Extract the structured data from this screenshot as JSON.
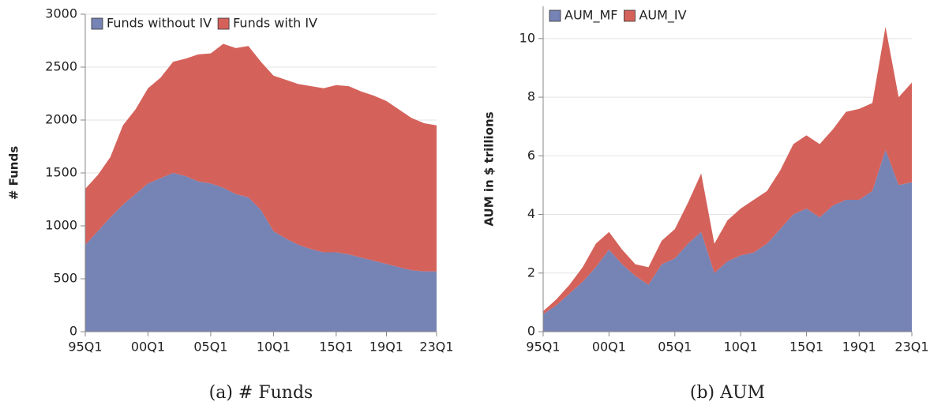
{
  "chart_data": [
    {
      "type": "stacked_area",
      "y_label": "# Funds",
      "caption": "(a) # Funds",
      "x": [
        1995,
        1996,
        1997,
        1998,
        1999,
        2000,
        2001,
        2002,
        2003,
        2004,
        2005,
        2006,
        2007,
        2008,
        2009,
        2010,
        2011,
        2012,
        2013,
        2014,
        2015,
        2016,
        2017,
        2018,
        2019,
        2020,
        2021,
        2022,
        2023
      ],
      "xlim": [
        1995,
        2023
      ],
      "xticks": [
        {
          "value": 1995,
          "label": "95Q1"
        },
        {
          "value": 2000,
          "label": "00Q1"
        },
        {
          "value": 2005,
          "label": "05Q1"
        },
        {
          "value": 2010,
          "label": "10Q1"
        },
        {
          "value": 2015,
          "label": "15Q1"
        },
        {
          "value": 2019,
          "label": "19Q1"
        },
        {
          "value": 2023,
          "label": "23Q1"
        }
      ],
      "ylim": [
        0,
        3000
      ],
      "yticks": [
        0,
        500,
        1000,
        1500,
        2000,
        2500,
        3000
      ],
      "grid": true,
      "legend": "upper-left",
      "series": [
        {
          "name": "Funds without IV",
          "color": "#7683b5",
          "values": [
            820,
            950,
            1080,
            1200,
            1300,
            1400,
            1450,
            1500,
            1470,
            1420,
            1400,
            1360,
            1300,
            1270,
            1150,
            950,
            880,
            820,
            780,
            750,
            750,
            730,
            700,
            670,
            640,
            610,
            580,
            570,
            570
          ]
        },
        {
          "name": "Funds with IV",
          "color": "#d4625b",
          "values": [
            530,
            530,
            570,
            750,
            800,
            900,
            950,
            1050,
            1110,
            1200,
            1230,
            1360,
            1380,
            1430,
            1400,
            1470,
            1500,
            1520,
            1540,
            1550,
            1580,
            1590,
            1570,
            1560,
            1540,
            1490,
            1440,
            1400,
            1380
          ]
        }
      ]
    },
    {
      "type": "stacked_area",
      "y_label": "AUM in $ trillions",
      "caption": "(b) AUM",
      "x": [
        1995,
        1996,
        1997,
        1998,
        1999,
        2000,
        2001,
        2002,
        2003,
        2004,
        2005,
        2006,
        2007,
        2008,
        2009,
        2010,
        2011,
        2012,
        2013,
        2014,
        2015,
        2016,
        2017,
        2018,
        2019,
        2020,
        2021,
        2022,
        2023
      ],
      "xlim": [
        1995,
        2023
      ],
      "xticks": [
        {
          "value": 1995,
          "label": "95Q1"
        },
        {
          "value": 2000,
          "label": "00Q1"
        },
        {
          "value": 2005,
          "label": "05Q1"
        },
        {
          "value": 2010,
          "label": "10Q1"
        },
        {
          "value": 2015,
          "label": "15Q1"
        },
        {
          "value": 2019,
          "label": "19Q1"
        },
        {
          "value": 2023,
          "label": "23Q1"
        }
      ],
      "ylim": [
        0,
        11.1
      ],
      "yticks": [
        0,
        2,
        4,
        6,
        8,
        10
      ],
      "grid": true,
      "legend": "upper-left",
      "series": [
        {
          "name": "AUM_MF",
          "color": "#7683b5",
          "values": [
            0.6,
            0.9,
            1.3,
            1.7,
            2.2,
            2.8,
            2.3,
            1.9,
            1.6,
            2.3,
            2.5,
            3.0,
            3.4,
            2.0,
            2.4,
            2.6,
            2.7,
            3.0,
            3.5,
            4.0,
            4.2,
            3.9,
            4.3,
            4.5,
            4.5,
            4.8,
            6.2,
            5.0,
            5.1
          ]
        },
        {
          "name": "AUM_IV",
          "color": "#d4625b",
          "values": [
            0.1,
            0.2,
            0.3,
            0.5,
            0.8,
            0.6,
            0.5,
            0.4,
            0.6,
            0.8,
            1.0,
            1.4,
            2.0,
            1.0,
            1.4,
            1.6,
            1.8,
            1.8,
            2.0,
            2.4,
            2.5,
            2.5,
            2.6,
            3.0,
            3.1,
            3.0,
            4.2,
            3.0,
            3.4
          ]
        }
      ]
    }
  ]
}
